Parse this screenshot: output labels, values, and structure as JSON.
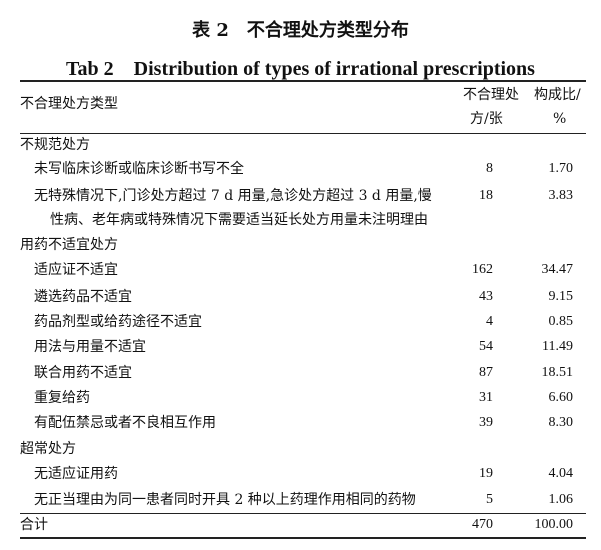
{
  "title_cn": "表 2　不合理处方类型分布",
  "title_en": "Tab 2　Distribution of types of irrational prescriptions",
  "header": {
    "type": "不合理处方类型",
    "count_l1": "不合理处",
    "count_l2": "方/张",
    "ratio_l1": "构成比/",
    "ratio_l2": "%"
  },
  "rows": [
    {
      "label": "不规范处方",
      "level": 0
    },
    {
      "label": "未写临床诊断或临床诊断书写不全",
      "count": "8",
      "ratio": "1.70",
      "level": 1
    },
    {
      "label": "无特殊情况下,门诊处方超过 7 d 用量,急诊处方超过 3 d 用量,慢",
      "count": "18",
      "ratio": "3.83",
      "level": 1
    },
    {
      "label": "性病、老年病或特殊情况下需要适当延长处方用量未注明理由",
      "level": 2
    },
    {
      "label": "用药不适宜处方",
      "level": 0
    },
    {
      "label": "适应证不适宜",
      "count": "162",
      "ratio": "34.47",
      "level": 1
    },
    {
      "label": "遴选药品不适宜",
      "count": "43",
      "ratio": "9.15",
      "level": 1
    },
    {
      "label": "药品剂型或给药途径不适宜",
      "count": "4",
      "ratio": "0.85",
      "level": 1
    },
    {
      "label": "用法与用量不适宜",
      "count": "54",
      "ratio": "11.49",
      "level": 1
    },
    {
      "label": "联合用药不适宜",
      "count": "87",
      "ratio": "18.51",
      "level": 1
    },
    {
      "label": "重复给药",
      "count": "31",
      "ratio": "6.60",
      "level": 1
    },
    {
      "label": "有配伍禁忌或者不良相互作用",
      "count": "39",
      "ratio": "8.30",
      "level": 1
    },
    {
      "label": "超常处方",
      "level": 0
    },
    {
      "label": "无适应证用药",
      "count": "19",
      "ratio": "4.04",
      "level": 1
    },
    {
      "label": "无正当理由为同一患者同时开具 2 种以上药理作用相同的药物",
      "count": "5",
      "ratio": "1.06",
      "level": 1
    },
    {
      "label": "合计",
      "count": "470",
      "ratio": "100.00",
      "level": 0
    }
  ]
}
